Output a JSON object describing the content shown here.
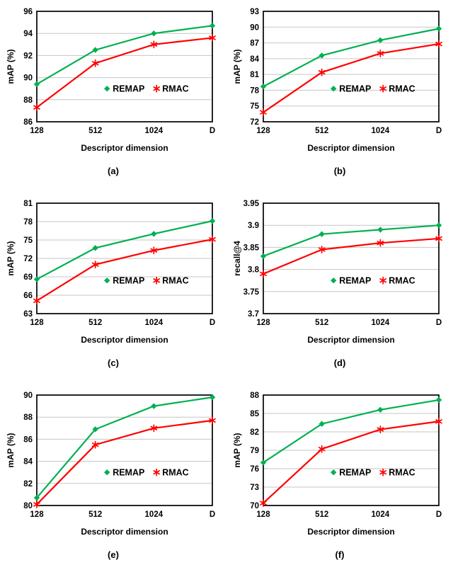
{
  "chart_data": [
    {
      "caption": "(a)",
      "type": "line",
      "title": "",
      "xlabel": "Descriptor dimension",
      "ylabel": "mAP (%)",
      "categories": [
        "128",
        "512",
        "1024",
        "D"
      ],
      "ylim": [
        86,
        96
      ],
      "ytick_step": 2,
      "grid": "horizontal",
      "legend_position": "inside-lower-right",
      "series": [
        {
          "name": "REMAP",
          "color": "#00B050",
          "marker": "diamond",
          "values": [
            89.4,
            92.5,
            94.0,
            94.7
          ]
        },
        {
          "name": "RMAC",
          "color": "#FF0000",
          "marker": "star",
          "values": [
            87.3,
            91.3,
            93.0,
            93.6
          ]
        }
      ]
    },
    {
      "caption": "(b)",
      "type": "line",
      "title": "",
      "xlabel": "Descriptor dimension",
      "ylabel": "mAP (%)",
      "categories": [
        "128",
        "512",
        "1024",
        "D"
      ],
      "ylim": [
        72,
        93
      ],
      "ytick_step": 3,
      "grid": "horizontal",
      "legend_position": "inside-lower-right",
      "series": [
        {
          "name": "REMAP",
          "color": "#00B050",
          "marker": "diamond",
          "values": [
            78.7,
            84.6,
            87.5,
            89.7
          ]
        },
        {
          "name": "RMAC",
          "color": "#FF0000",
          "marker": "star",
          "values": [
            73.8,
            81.4,
            85.0,
            86.8
          ]
        }
      ]
    },
    {
      "caption": "(c)",
      "type": "line",
      "title": "",
      "xlabel": "Descriptor dimension",
      "ylabel": "mAP (%)",
      "categories": [
        "128",
        "512",
        "1024",
        "D"
      ],
      "ylim": [
        63,
        81
      ],
      "ytick_step": 3,
      "grid": "horizontal",
      "legend_position": "inside-lower-right",
      "series": [
        {
          "name": "REMAP",
          "color": "#00B050",
          "marker": "diamond",
          "values": [
            68.6,
            73.7,
            76.0,
            78.1
          ]
        },
        {
          "name": "RMAC",
          "color": "#FF0000",
          "marker": "star",
          "values": [
            65.1,
            71.0,
            73.3,
            75.1
          ]
        }
      ]
    },
    {
      "caption": "(d)",
      "type": "line",
      "title": "",
      "xlabel": "Descriptor dimension",
      "ylabel": "recall@4",
      "categories": [
        "128",
        "512",
        "1024",
        "D"
      ],
      "ylim": [
        3.7,
        3.95
      ],
      "ytick_step": 0.05,
      "grid": "horizontal",
      "legend_position": "inside-lower-right",
      "series": [
        {
          "name": "REMAP",
          "color": "#00B050",
          "marker": "diamond",
          "values": [
            3.83,
            3.88,
            3.89,
            3.9
          ]
        },
        {
          "name": "RMAC",
          "color": "#FF0000",
          "marker": "star",
          "values": [
            3.79,
            3.845,
            3.86,
            3.87
          ]
        }
      ]
    },
    {
      "caption": "(e)",
      "type": "line",
      "title": "",
      "xlabel": "Descriptor dimension",
      "ylabel": "mAP (%)",
      "categories": [
        "128",
        "512",
        "1024",
        "D"
      ],
      "ylim": [
        80,
        90
      ],
      "ytick_step": 2,
      "grid": "horizontal",
      "legend_position": "inside-lower-right",
      "series": [
        {
          "name": "REMAP",
          "color": "#00B050",
          "marker": "diamond",
          "values": [
            80.7,
            86.9,
            89.0,
            89.8
          ]
        },
        {
          "name": "RMAC",
          "color": "#FF0000",
          "marker": "star",
          "values": [
            80.1,
            85.5,
            87.0,
            87.7
          ]
        }
      ]
    },
    {
      "caption": "(f)",
      "type": "line",
      "title": "",
      "xlabel": "Descriptor dimension",
      "ylabel": "mAP (%)",
      "categories": [
        "128",
        "512",
        "1024",
        "D"
      ],
      "ylim": [
        70,
        88
      ],
      "ytick_step": 3,
      "grid": "horizontal",
      "legend_position": "inside-lower-right",
      "series": [
        {
          "name": "REMAP",
          "color": "#00B050",
          "marker": "diamond",
          "values": [
            77.0,
            83.3,
            85.6,
            87.2
          ]
        },
        {
          "name": "RMAC",
          "color": "#FF0000",
          "marker": "star",
          "values": [
            70.4,
            79.2,
            82.4,
            83.7
          ]
        }
      ]
    }
  ]
}
